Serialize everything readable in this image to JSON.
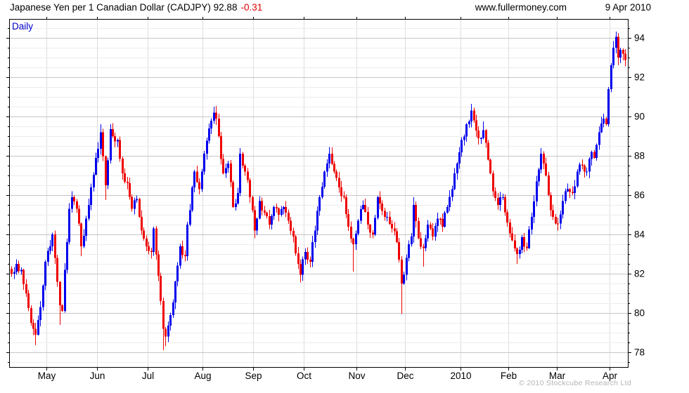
{
  "header": {
    "title": "Japanese Yen per 1 Canadian Dollar (CADJPY) 92.88",
    "change": "-0.31",
    "site": "www.fullermoney.com",
    "date": "9 Apr 2010"
  },
  "footer": {
    "copyright": "© 2010 Stockcube Research Ltd"
  },
  "chart_data": {
    "type": "candlestick",
    "title": "Japanese Yen per 1 Canadian Dollar (CADJPY)",
    "timeframe_label": "Daily",
    "last_price": 92.88,
    "change": -0.31,
    "date": "9 Apr 2010",
    "ylabel": "",
    "xlabel": "",
    "ylim": [
      77.25,
      94.93
    ],
    "y_tick_labels": [
      78,
      80,
      82,
      84,
      86,
      88,
      90,
      92,
      94
    ],
    "y_tick_minor_step": 0.5,
    "grid": true,
    "legend_position": "none",
    "colors": {
      "up": "#0000ee",
      "down": "#ee0000",
      "grid_minor": "#ececec",
      "grid_major": "#c6c6c6",
      "grid_vertical": "#dddddd",
      "axis": "#000000",
      "timeframe": "#0000cc",
      "change_text": "#dd0000",
      "copyright": "#b4b4b4"
    },
    "x_axis": {
      "total_days": 256,
      "months": [
        {
          "label": "May",
          "day": 15
        },
        {
          "label": "Jun",
          "day": 36
        },
        {
          "label": "Jul",
          "day": 57
        },
        {
          "label": "Aug",
          "day": 80
        },
        {
          "label": "Sep",
          "day": 101
        },
        {
          "label": "Oct",
          "day": 122
        },
        {
          "label": "Nov",
          "day": 144
        },
        {
          "label": "Dec",
          "day": 164
        },
        {
          "label": "2010",
          "day": 187
        },
        {
          "label": "Feb",
          "day": 207
        },
        {
          "label": "Mar",
          "day": 227
        },
        {
          "label": "Apr",
          "day": 249
        }
      ]
    },
    "series_note": "Daily OHLC swing anchors read from chart: [dayIndex, close, wickLow(optional), wickHigh(optional)]; day 0 = mid-April 2009, last day = 9 Apr 2010 closing 92.88",
    "anchors": [
      [
        0,
        82.0
      ],
      [
        2,
        82.5
      ],
      [
        4,
        82.2
      ],
      [
        6,
        81.0
      ],
      [
        8,
        79.5
      ],
      [
        10,
        78.9,
        78.35,
        null
      ],
      [
        12,
        80.3
      ],
      [
        14,
        82.6
      ],
      [
        16,
        83.4
      ],
      [
        17,
        84.0
      ],
      [
        18,
        82.8
      ],
      [
        20,
        80.4,
        79.4,
        null
      ],
      [
        21,
        80.1
      ],
      [
        22,
        82.2
      ],
      [
        23,
        83.6
      ],
      [
        24,
        85.3
      ],
      [
        25,
        85.9,
        null,
        86.2
      ],
      [
        27,
        85.3
      ],
      [
        29,
        83.4,
        82.9,
        null
      ],
      [
        31,
        84.8
      ],
      [
        33,
        86.4
      ],
      [
        35,
        87.9
      ],
      [
        37,
        89.2,
        null,
        89.6
      ],
      [
        39,
        86.5,
        85.75,
        null
      ],
      [
        41,
        89.35,
        null,
        89.6
      ],
      [
        42,
        89.0
      ],
      [
        44,
        88.8
      ],
      [
        46,
        87.1
      ],
      [
        48,
        86.6
      ],
      [
        50,
        85.3
      ],
      [
        52,
        85.8
      ],
      [
        54,
        84.2
      ],
      [
        56,
        83.4
      ],
      [
        58,
        83.1
      ],
      [
        59,
        84.3
      ],
      [
        61,
        81.9
      ],
      [
        62,
        80.6
      ],
      [
        63,
        79.2,
        78.1,
        null
      ],
      [
        64,
        78.8,
        78.3,
        null
      ],
      [
        66,
        79.9
      ],
      [
        68,
        81.6
      ],
      [
        70,
        83.4
      ],
      [
        72,
        82.9
      ],
      [
        73,
        84.5
      ],
      [
        75,
        86.4
      ],
      [
        76,
        87.2
      ],
      [
        78,
        86.3
      ],
      [
        80,
        88.1
      ],
      [
        82,
        89.4
      ],
      [
        84,
        90.2,
        null,
        90.5
      ],
      [
        85,
        89.9
      ],
      [
        86,
        89.0
      ],
      [
        88,
        87.1
      ],
      [
        90,
        87.6
      ],
      [
        92,
        85.4
      ],
      [
        94,
        86.1
      ],
      [
        95,
        88.1,
        null,
        88.4
      ],
      [
        97,
        87.2
      ],
      [
        99,
        85.9
      ],
      [
        101,
        84.2,
        83.8,
        null
      ],
      [
        103,
        85.7
      ],
      [
        105,
        85.1
      ],
      [
        107,
        84.5
      ],
      [
        109,
        85.4
      ],
      [
        111,
        85.0
      ],
      [
        113,
        85.4
      ],
      [
        115,
        84.7
      ],
      [
        117,
        83.9
      ],
      [
        119,
        82.5
      ],
      [
        120,
        81.95,
        81.55,
        null
      ],
      [
        122,
        83.1
      ],
      [
        124,
        82.6
      ],
      [
        126,
        84.2
      ],
      [
        128,
        85.9
      ],
      [
        130,
        87.2
      ],
      [
        132,
        88.1,
        null,
        88.45
      ],
      [
        134,
        87.2
      ],
      [
        136,
        86.4
      ],
      [
        138,
        85.9
      ],
      [
        140,
        84.4
      ],
      [
        142,
        83.5,
        82.1,
        null
      ],
      [
        144,
        84.7
      ],
      [
        146,
        85.5
      ],
      [
        148,
        84.5
      ],
      [
        150,
        84.0
      ],
      [
        152,
        85.9
      ],
      [
        154,
        85.2
      ],
      [
        156,
        84.9
      ],
      [
        158,
        84.3
      ],
      [
        160,
        83.6
      ],
      [
        162,
        81.5,
        79.95,
        null
      ],
      [
        164,
        82.8
      ],
      [
        166,
        83.9
      ],
      [
        167,
        85.5,
        null,
        85.9
      ],
      [
        169,
        83.8
      ],
      [
        171,
        83.3,
        82.35,
        null
      ],
      [
        173,
        84.5
      ],
      [
        175,
        83.9
      ],
      [
        177,
        84.8
      ],
      [
        179,
        84.4
      ],
      [
        181,
        85.4
      ],
      [
        183,
        86.3
      ],
      [
        185,
        87.6
      ],
      [
        187,
        88.8
      ],
      [
        189,
        89.6
      ],
      [
        191,
        90.3,
        null,
        90.65
      ],
      [
        192,
        89.8
      ],
      [
        194,
        88.9
      ],
      [
        196,
        89.3,
        null,
        89.75
      ],
      [
        198,
        87.8
      ],
      [
        200,
        86.2
      ],
      [
        202,
        85.5
      ],
      [
        204,
        85.9
      ],
      [
        206,
        84.6
      ],
      [
        208,
        83.7
      ],
      [
        210,
        83.0,
        82.5,
        null
      ],
      [
        212,
        83.85
      ],
      [
        214,
        83.3
      ],
      [
        216,
        84.9
      ],
      [
        218,
        86.7
      ],
      [
        220,
        88.1,
        null,
        88.4
      ],
      [
        221,
        87.6
      ],
      [
        223,
        86.0
      ],
      [
        225,
        84.9
      ],
      [
        227,
        84.55,
        84.2,
        null
      ],
      [
        229,
        85.7
      ],
      [
        231,
        86.3
      ],
      [
        233,
        86.1
      ],
      [
        235,
        87.2
      ],
      [
        237,
        87.5
      ],
      [
        239,
        87.2
      ],
      [
        241,
        88.2
      ],
      [
        242,
        87.9
      ],
      [
        244,
        89.2
      ],
      [
        246,
        89.9,
        null,
        90.15
      ],
      [
        247,
        89.6
      ],
      [
        248,
        91.4
      ],
      [
        249,
        92.6
      ],
      [
        250,
        93.5
      ],
      [
        251,
        94.05,
        null,
        94.33
      ],
      [
        252,
        93.0,
        92.6,
        null
      ],
      [
        253,
        93.4
      ],
      [
        254,
        93.19
      ],
      [
        255,
        92.88,
        92.55,
        null
      ]
    ],
    "seed": 20100409
  }
}
